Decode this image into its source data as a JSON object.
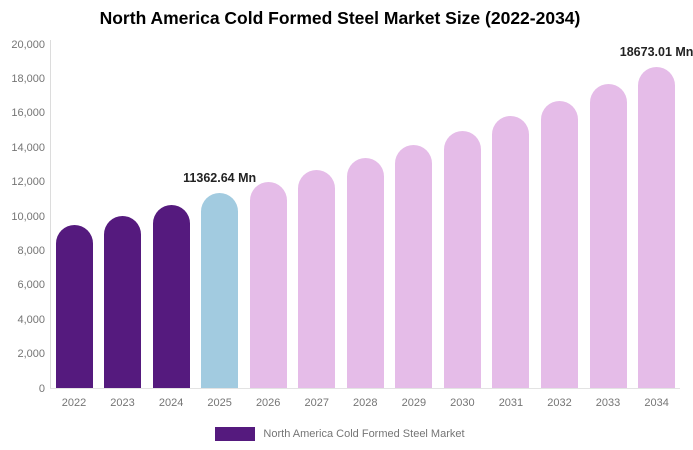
{
  "chart_data": {
    "type": "bar",
    "title": "North America Cold Formed Steel Market Size (2022-2034)",
    "categories": [
      "2022",
      "2023",
      "2024",
      "2025",
      "2026",
      "2027",
      "2028",
      "2029",
      "2030",
      "2031",
      "2032",
      "2033",
      "2034"
    ],
    "values": [
      9480,
      10040,
      10640,
      11362.64,
      12008,
      12690,
      13411,
      14173,
      14978,
      15829,
      16728,
      17678,
      18673.01
    ],
    "unit": "Mn",
    "bar_colors": [
      "#551a7e",
      "#551a7e",
      "#551a7e",
      "#a2cbe0",
      "#e5bce8",
      "#e5bce8",
      "#e5bce8",
      "#e5bce8",
      "#e5bce8",
      "#e5bce8",
      "#e5bce8",
      "#e5bce8",
      "#e5bce8"
    ],
    "ylim": [
      0,
      20000
    ],
    "ytick_step": 2000,
    "ytick_labels_top_down": [
      "20,000",
      "18,000",
      "16,000",
      "14,000",
      "12,000",
      "10,000",
      "8,000",
      "6,000",
      "4,000",
      "2,000",
      "0"
    ],
    "grid": false,
    "xlabel": "",
    "ylabel": "",
    "annotations": [
      {
        "category": "2025",
        "text": "11362.64 Mn"
      },
      {
        "category": "2034",
        "text": "18673.01 Mn"
      }
    ],
    "legend_position": "bottom",
    "legend": [
      {
        "label": "North America Cold Formed Steel Market",
        "color": "#551a7e"
      }
    ],
    "colors": {
      "historical_bar": "#551a7e",
      "base_year_bar": "#a2cbe0",
      "forecast_bar": "#e5bce8",
      "axis_text": "#757575",
      "axis_line": "#dcdcdc",
      "title_text": "#000000",
      "annotation_text": "#222222"
    }
  }
}
